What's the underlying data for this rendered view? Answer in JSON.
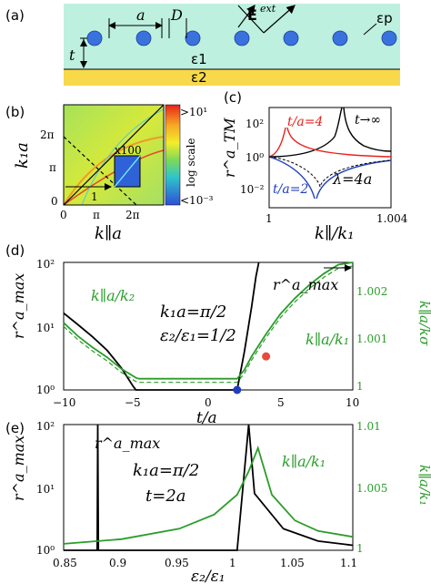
{
  "panels": {
    "a": {
      "label": "(a)",
      "sym_a": "a",
      "sym_D": "D",
      "sym_t": "t",
      "sym_E": "E",
      "sym_E_sup": "ext",
      "eps_p": "εp",
      "eps_1": "ε1",
      "eps_2": "ε2",
      "colors": {
        "layer1": "#bdf0de",
        "substrate": "#f7d94a",
        "particle": "#3a72dd"
      }
    },
    "b": {
      "label": "(b)",
      "ylabel": "k₁a",
      "xlabel": "k∥a",
      "yticks": [
        "2π",
        "π",
        "0"
      ],
      "xticks": [
        "0",
        "π",
        "2π"
      ],
      "inset": "x100",
      "marker": "1",
      "colorbar_top": ">10¹",
      "colorbar_bottom": "<10⁻³",
      "colorbar_label": "log scale"
    },
    "c": {
      "label": "(c)",
      "ylabel": "r^a_TM",
      "xlabel": "k∥/k₁",
      "yticks": [
        "10²",
        "10⁰",
        "10⁻²"
      ],
      "xticks": [
        "1",
        "1.004"
      ],
      "ann_red": "t/a=4",
      "ann_black": "t→∞",
      "ann_blue": "t/a=2",
      "ann_lambda": "λ=4a"
    },
    "d": {
      "label": "(d)",
      "ylabel": "r^a_max",
      "xlabel": "t/a",
      "yticks": [
        "10²",
        "10¹",
        "10⁰"
      ],
      "xticks": [
        "−10",
        "−5",
        "0",
        "5",
        "10"
      ],
      "yticks_right": [
        "1.002",
        "1.001",
        "1"
      ],
      "ylabel_right": "k∥a/kσ",
      "ann_rmax": "r^a_max",
      "ann_k2": "k∥a/k₂",
      "ann_k1": "k∥a/k₁",
      "param1": "k₁a=π/2",
      "param2": "ε₂/ε₁=1/2"
    },
    "e": {
      "label": "(e)",
      "ylabel": "r^a_max",
      "xlabel": "ε₂/ε₁",
      "yticks": [
        "10²",
        "10¹",
        "10⁰"
      ],
      "xticks": [
        "0.85",
        "0.9",
        "0.95",
        "1",
        "1.05",
        "1.1"
      ],
      "yticks_right": [
        "1.01",
        "1.005",
        "1"
      ],
      "ylabel_right": "k∥a/k₁",
      "ann_rmax": "r^a_max",
      "ann_k1": "k∥a/k₁",
      "param1": "k₁a=π/2",
      "param2": "t=2a"
    }
  },
  "chart_data": [
    {
      "panel": "d",
      "type": "line",
      "xlabel": "t/a",
      "ylabel": "r^a_max",
      "xlim": [
        -10,
        10
      ],
      "ylim": [
        1,
        100
      ],
      "yscale": "log",
      "y2lim": [
        0.99975,
        1.0026
      ],
      "series": [
        {
          "name": "r^a_max",
          "color": "#000000",
          "axis": "left",
          "x": [
            -10,
            -9,
            -8,
            -7,
            -6,
            -5.2,
            -5,
            1.5,
            2,
            2.5,
            3,
            3.3,
            3.5
          ],
          "y": [
            16,
            10.5,
            6.8,
            4.2,
            2.2,
            1.15,
            1,
            1,
            1,
            4,
            20,
            60,
            100
          ]
        },
        {
          "name": "k∥a/k₂",
          "color": "#2a9d2a",
          "axis": "right",
          "x": [
            -10,
            -9,
            -8,
            -7,
            -6,
            -5,
            -4.8,
            2,
            2.5,
            3,
            4,
            5,
            6,
            7,
            8,
            9,
            10
          ],
          "y": [
            1.00125,
            1.00095,
            1.0007,
            1.00048,
            1.00022,
            1.00002,
            1,
            1,
            1.0002,
            1.0005,
            1.001,
            1.00145,
            1.0018,
            1.0021,
            1.00235,
            1.00255,
            1.0027
          ]
        }
      ],
      "points": [
        {
          "x": 2.0,
          "y": 1,
          "color": "#1f3fbf"
        },
        {
          "x": 4.0,
          "y": 1.0005,
          "color": "#e84b3c"
        }
      ]
    },
    {
      "panel": "e",
      "type": "line",
      "xlabel": "ε₂/ε₁",
      "ylabel": "r^a_max",
      "xlim": [
        0.85,
        1.1
      ],
      "ylim": [
        1,
        100
      ],
      "yscale": "log",
      "y2lim": [
        0.99975,
        1.0105
      ],
      "series": [
        {
          "name": "r^a_max",
          "color": "#000000",
          "axis": "left",
          "x": [
            0.85,
            0.879,
            0.8795,
            0.88,
            0.95,
            1.0,
            1.01,
            1.015,
            1.04,
            1.07,
            1.1
          ],
          "y": [
            1,
            1,
            100,
            1,
            1,
            1,
            100,
            8,
            2.2,
            1.4,
            1.2
          ]
        },
        {
          "name": "k∥a/k₁",
          "color": "#2a9d2a",
          "axis": "right",
          "x": [
            0.85,
            0.9,
            0.95,
            0.98,
            1.0,
            1.01,
            1.018,
            1.03,
            1.05,
            1.07,
            1.1
          ],
          "y": [
            1.0003,
            1.0007,
            1.0016,
            1.0028,
            1.0045,
            1.0065,
            1.0085,
            1.0045,
            1.0023,
            1.0014,
            1.0009
          ]
        }
      ]
    }
  ]
}
